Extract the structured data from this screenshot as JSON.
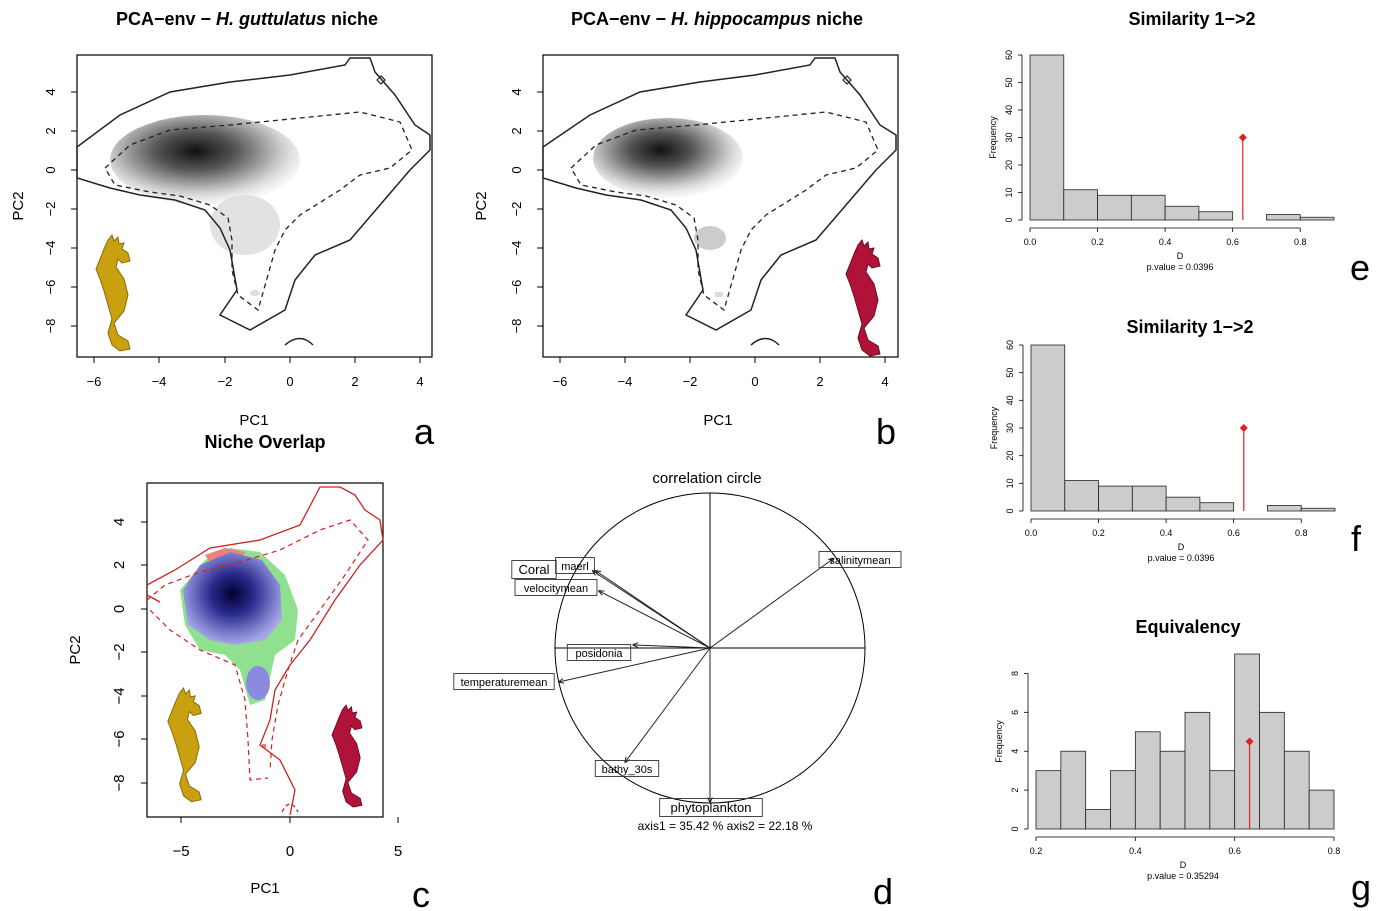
{
  "panels": {
    "a": {
      "letter": "a",
      "title_prefix": "PCA−env − ",
      "title_species": "H. guttulatus",
      "title_suffix": " niche",
      "xlabel": "PC1",
      "ylabel": "PC2",
      "xticks": [
        "−6",
        "−4",
        "−2",
        "0",
        "2",
        "4"
      ],
      "yticks": [
        "4",
        "2",
        "0",
        "−2",
        "−4",
        "−6",
        "−8"
      ],
      "seahorse_color": "#c9a010"
    },
    "b": {
      "letter": "b",
      "title_prefix": "PCA−env − ",
      "title_species": "H. hippocampus",
      "title_suffix": " niche",
      "xlabel": "PC1",
      "ylabel": "PC2",
      "xticks": [
        "−6",
        "−4",
        "−2",
        "0",
        "2",
        "4"
      ],
      "yticks": [
        "4",
        "2",
        "0",
        "−2",
        "−4",
        "−6",
        "−8"
      ],
      "seahorse_color": "#b0123a"
    },
    "c": {
      "letter": "c",
      "title": "Niche Overlap",
      "xlabel": "PC1",
      "ylabel": "PC2",
      "xticks": [
        "−5",
        "0",
        "5"
      ],
      "yticks": [
        "4",
        "2",
        "0",
        "−2",
        "−4",
        "−6",
        "−8"
      ],
      "colors": {
        "overlap": "#2a2a8c",
        "species1_only": "#8fe08f",
        "species2_only": "#f08080",
        "contour": "#cc2222"
      }
    },
    "d": {
      "letter": "d",
      "title": "correlation circle",
      "axes_text": "axis1 =  35.42 % axis2 =  22.18 %",
      "variables": [
        {
          "name": "salinitymean",
          "pc1": 0.8,
          "pc2": 0.58
        },
        {
          "name": "maerl",
          "pc1": -0.74,
          "pc2": 0.5
        },
        {
          "name": "Coral",
          "pc1": -0.76,
          "pc2": 0.5
        },
        {
          "name": "velocitymean",
          "pc1": -0.72,
          "pc2": 0.37
        },
        {
          "name": "posidonia",
          "pc1": -0.5,
          "pc2": 0.02
        },
        {
          "name": "temperaturemean",
          "pc1": -0.98,
          "pc2": -0.22
        },
        {
          "name": "bathy_30s",
          "pc1": -0.55,
          "pc2": -0.74
        },
        {
          "name": "phytoplankton",
          "pc1": 0.0,
          "pc2": -1.0
        }
      ]
    }
  },
  "chart_data": [
    {
      "type": "bar",
      "panel": "e",
      "title": "Similarity 1−>2",
      "xlabel": "D",
      "ylabel": "Frequency",
      "bin_edges": [
        0.0,
        0.1,
        0.2,
        0.3,
        0.4,
        0.5,
        0.6,
        0.7,
        0.8,
        0.9
      ],
      "values": [
        60,
        11,
        9,
        9,
        5,
        3,
        0,
        2,
        1
      ],
      "xlim": [
        0,
        0.9
      ],
      "ylim": [
        0,
        60
      ],
      "xticks": [
        "0.0",
        "0.2",
        "0.4",
        "0.6",
        "0.8"
      ],
      "yticks": [
        "0",
        "10",
        "20",
        "30",
        "40",
        "50",
        "60"
      ],
      "observed": {
        "x": 0.63,
        "y": 30
      },
      "pvalue_text": "p.value =  0.0396"
    },
    {
      "type": "bar",
      "panel": "f",
      "title": "Similarity 1−>2",
      "xlabel": "D",
      "ylabel": "Frequency",
      "bin_edges": [
        0.0,
        0.1,
        0.2,
        0.3,
        0.4,
        0.5,
        0.6,
        0.7,
        0.8,
        0.9
      ],
      "values": [
        60,
        11,
        9,
        9,
        5,
        3,
        0,
        2,
        1
      ],
      "xlim": [
        0,
        0.9
      ],
      "ylim": [
        0,
        60
      ],
      "xticks": [
        "0.0",
        "0.2",
        "0.4",
        "0.6",
        "0.8"
      ],
      "yticks": [
        "0",
        "10",
        "20",
        "30",
        "40",
        "50",
        "60"
      ],
      "observed": {
        "x": 0.63,
        "y": 30
      },
      "pvalue_text": "p.value =  0.0396"
    },
    {
      "type": "bar",
      "panel": "g",
      "title": "Equivalency",
      "xlabel": "D",
      "ylabel": "Frequency",
      "bin_edges": [
        0.2,
        0.25,
        0.3,
        0.35,
        0.4,
        0.45,
        0.5,
        0.55,
        0.6,
        0.65,
        0.7,
        0.75,
        0.8
      ],
      "values": [
        3,
        4,
        1,
        3,
        5,
        4,
        6,
        3,
        9,
        6,
        4,
        2
      ],
      "xlim": [
        0.2,
        0.8
      ],
      "ylim": [
        0,
        9
      ],
      "xticks": [
        "0.2",
        "0.4",
        "0.6",
        "0.8"
      ],
      "yticks": [
        "0",
        "2",
        "4",
        "6",
        "8"
      ],
      "observed": {
        "x": 0.63,
        "y": 4.5
      },
      "pvalue_text": "p.value =  0.35294"
    }
  ]
}
